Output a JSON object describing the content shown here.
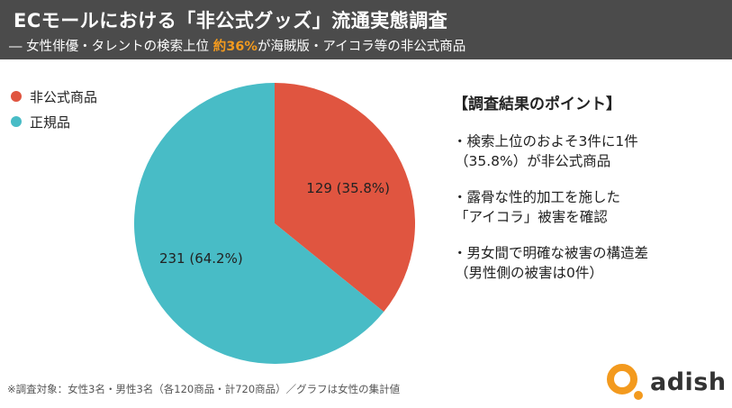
{
  "header": {
    "title": "ECモールにおける「非公式グッズ」流通実態調査",
    "subtitle_prefix": "― 女性俳優・タレントの検索上位 ",
    "subtitle_highlight": "約36%",
    "subtitle_suffix": "が海賊版・アイコラ等の非公式商品"
  },
  "colors": {
    "header_bg": "#4b4b4b",
    "highlight": "#f39a1e",
    "unofficial": "#e05540",
    "official": "#48bcc6",
    "logo": "#f39a1e"
  },
  "chart_data": {
    "type": "pie",
    "title": "",
    "categories": [
      "非公式商品",
      "正規品"
    ],
    "values": [
      129,
      231
    ],
    "percents": [
      35.8,
      64.2
    ],
    "data_labels": [
      "129 (35.8%)",
      "231 (64.2%)"
    ],
    "colors": [
      "#e05540",
      "#48bcc6"
    ],
    "legend": "top-left"
  },
  "points": {
    "title": "【調査結果のポイント】",
    "items": [
      {
        "line1": "・検索上位のおよそ3件に1件",
        "line2": "（35.8%）が非公式商品"
      },
      {
        "line1": "・露骨な性的加工を施した",
        "line2": "「アイコラ」被害を確認"
      },
      {
        "line1": "・男女間で明確な被害の構造差",
        "line2": "（男性側の被害は0件）"
      }
    ]
  },
  "footnote": "※調査対象：女性3名・男性3名（各120商品・計720商品）／グラフは女性の集計値",
  "logo": {
    "text": "adish",
    "icon": "adish-logo-icon"
  }
}
